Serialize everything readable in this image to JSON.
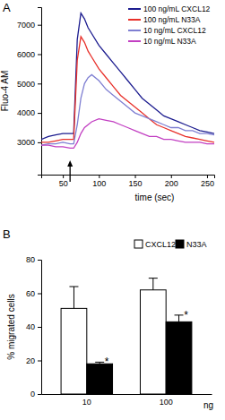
{
  "chart_data": [
    {
      "type": "line",
      "panel_label": "A",
      "x_label": "time (sec)",
      "y_label": "Fluo-4 AM",
      "x": [
        20,
        30,
        40,
        50,
        60,
        65,
        70,
        75,
        80,
        85,
        90,
        100,
        110,
        120,
        130,
        140,
        150,
        160,
        170,
        180,
        190,
        200,
        210,
        220,
        230,
        240,
        250,
        260
      ],
      "series": [
        {
          "name": "100 ng/mL CXCL12",
          "color": "#1c1c8f",
          "values": [
            3100,
            3200,
            3250,
            3300,
            3300,
            3300,
            6500,
            7400,
            7200,
            6900,
            6700,
            6300,
            6000,
            5700,
            5400,
            5100,
            4800,
            4500,
            4300,
            4100,
            3900,
            3800,
            3700,
            3600,
            3500,
            3400,
            3350,
            3300
          ]
        },
        {
          "name": "100 ng/mL N33A",
          "color": "#e8302a",
          "values": [
            3000,
            3000,
            3050,
            3100,
            3100,
            3100,
            5800,
            6600,
            6400,
            6100,
            5900,
            5500,
            5200,
            4900,
            4600,
            4400,
            4200,
            4000,
            3800,
            3600,
            3500,
            3400,
            3300,
            3200,
            3150,
            3100,
            3050,
            3000
          ]
        },
        {
          "name": "10 ng/mL CXCL12",
          "color": "#7f7fd2",
          "values": [
            2900,
            2950,
            2950,
            3000,
            2950,
            2950,
            3600,
            4500,
            5000,
            5200,
            5300,
            5100,
            4800,
            4600,
            4400,
            4200,
            4000,
            3900,
            3800,
            3700,
            3600,
            3500,
            3500,
            3400,
            3400,
            3300,
            3300,
            3250
          ]
        },
        {
          "name": "10 ng/mL N33A",
          "color": "#c23fc2",
          "values": [
            2900,
            2900,
            2850,
            2850,
            2800,
            2800,
            3000,
            3300,
            3500,
            3600,
            3700,
            3800,
            3750,
            3700,
            3600,
            3500,
            3400,
            3300,
            3200,
            3200,
            3100,
            3100,
            3050,
            3000,
            3000,
            3000,
            2950,
            2950
          ]
        }
      ],
      "xlim": [
        20,
        260
      ],
      "xticks": [
        50,
        100,
        150,
        200,
        250
      ],
      "ylim": [
        1900,
        7600
      ],
      "yticks": [
        3000,
        4000,
        5000,
        6000,
        7000
      ],
      "stimulus_time": 60,
      "legend": "top-right",
      "grid": false
    },
    {
      "type": "bar",
      "panel_label": "B",
      "x_label": "ng",
      "y_label": "% migrated cells",
      "categories": [
        "10",
        "100"
      ],
      "series": [
        {
          "name": "CXCL12",
          "color": "#ffffff",
          "values": [
            51,
            62
          ],
          "errors": [
            13,
            7
          ]
        },
        {
          "name": "N33A",
          "color": "#000000",
          "values": [
            18,
            43
          ],
          "errors": [
            1,
            4
          ],
          "annotations": [
            "*",
            "*"
          ]
        }
      ],
      "ylim": [
        0,
        80
      ],
      "yticks": [
        0,
        20,
        40,
        60,
        80
      ],
      "legend": "top-right",
      "grid": false
    }
  ]
}
